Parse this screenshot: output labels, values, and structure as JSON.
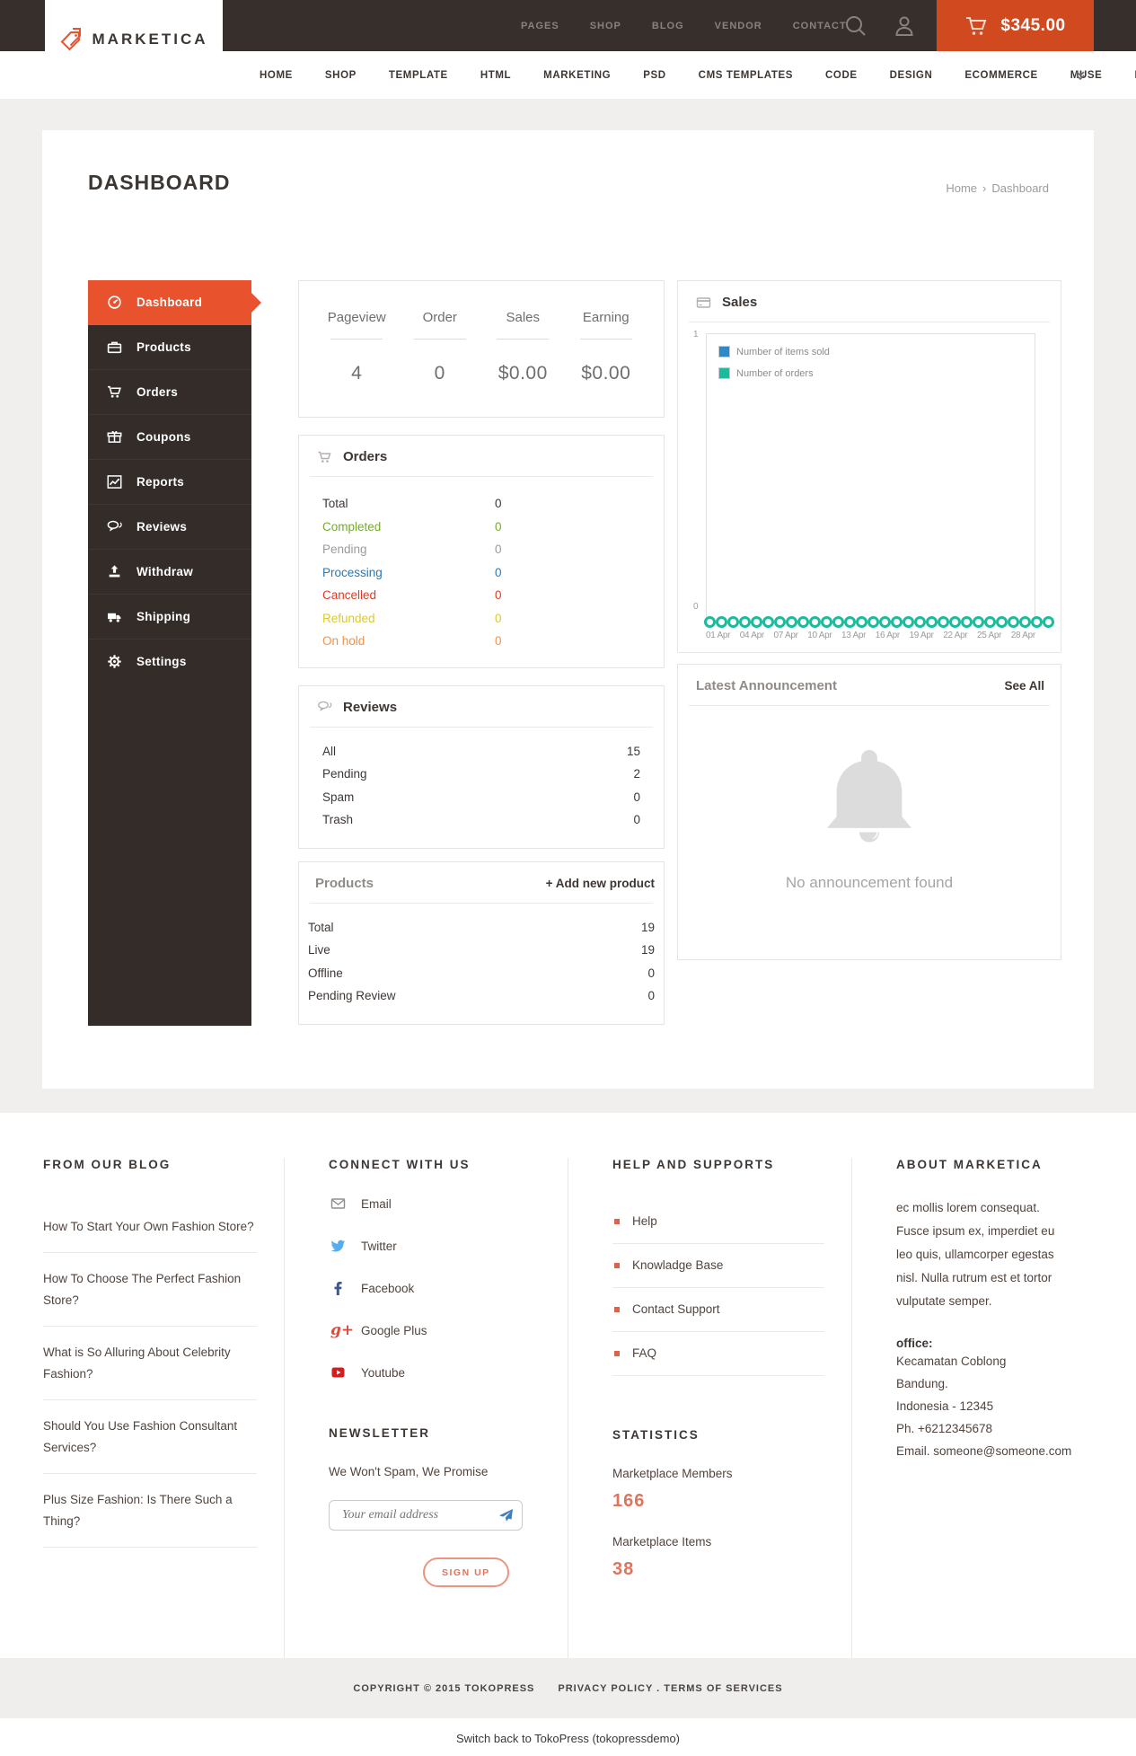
{
  "brand": {
    "name": "MARKETICA",
    "accent": "#e8522d",
    "cart_accent": "#d0491f",
    "header_bg": "#372f2b"
  },
  "topbar": {
    "nav": [
      "PAGES",
      "SHOP",
      "BLOG",
      "VENDOR",
      "CONTACT"
    ],
    "cart_total": "$345.00"
  },
  "mainnav": {
    "items": [
      "HOME",
      "SHOP",
      "TEMPLATE",
      "HTML",
      "MARKETING",
      "PSD",
      "CMS TEMPLATES",
      "CODE",
      "DESIGN",
      "ECOMMERCE",
      "MUSE",
      "PHOTO STOCKS"
    ]
  },
  "page": {
    "title": "DASHBOARD",
    "breadcrumb": {
      "home": "Home",
      "sep": "›",
      "current": "Dashboard"
    }
  },
  "sidebar": {
    "items": [
      {
        "label": "Dashboard",
        "icon": "dashboard-gauge"
      },
      {
        "label": "Products",
        "icon": "briefcase"
      },
      {
        "label": "Orders",
        "icon": "cart"
      },
      {
        "label": "Coupons",
        "icon": "gift"
      },
      {
        "label": "Reports",
        "icon": "line-chart"
      },
      {
        "label": "Reviews",
        "icon": "comments"
      },
      {
        "label": "Withdraw",
        "icon": "upload"
      },
      {
        "label": "Shipping",
        "icon": "truck"
      },
      {
        "label": "Settings",
        "icon": "gear"
      }
    ],
    "active": "Dashboard"
  },
  "stats": {
    "columns": [
      {
        "label": "Pageview",
        "value": "4"
      },
      {
        "label": "Order",
        "value": "0"
      },
      {
        "label": "Sales",
        "value": "$0.00"
      },
      {
        "label": "Earning",
        "value": "$0.00"
      }
    ]
  },
  "orders_panel": {
    "title": "Orders",
    "rows": [
      {
        "label": "Total",
        "value": "0",
        "cls": "c-dark"
      },
      {
        "label": "Completed",
        "value": "0",
        "cls": "c-green"
      },
      {
        "label": "Pending",
        "value": "0",
        "cls": "c-gray"
      },
      {
        "label": "Processing",
        "value": "0",
        "cls": "c-blue"
      },
      {
        "label": "Cancelled",
        "value": "0",
        "cls": "c-red"
      },
      {
        "label": "Refunded",
        "value": "0",
        "cls": "c-yellow"
      },
      {
        "label": "On hold",
        "value": "0",
        "cls": "c-orange"
      }
    ]
  },
  "chart_data": {
    "type": "scatter",
    "title": "Sales",
    "x": [
      "01 Apr",
      "02 Apr",
      "03 Apr",
      "04 Apr",
      "05 Apr",
      "06 Apr",
      "07 Apr",
      "08 Apr",
      "09 Apr",
      "10 Apr",
      "11 Apr",
      "12 Apr",
      "13 Apr",
      "14 Apr",
      "15 Apr",
      "16 Apr",
      "17 Apr",
      "18 Apr",
      "19 Apr",
      "20 Apr",
      "21 Apr",
      "22 Apr",
      "23 Apr",
      "24 Apr",
      "25 Apr",
      "26 Apr",
      "27 Apr",
      "28 Apr",
      "29 Apr",
      "30 Apr"
    ],
    "series": [
      {
        "name": "Number of items sold",
        "color": "#2d89c8",
        "values": [
          0,
          0,
          0,
          0,
          0,
          0,
          0,
          0,
          0,
          0,
          0,
          0,
          0,
          0,
          0,
          0,
          0,
          0,
          0,
          0,
          0,
          0,
          0,
          0,
          0,
          0,
          0,
          0,
          0,
          0
        ]
      },
      {
        "name": "Number of orders",
        "color": "#1abc9c",
        "values": [
          0,
          0,
          0,
          0,
          0,
          0,
          0,
          0,
          0,
          0,
          0,
          0,
          0,
          0,
          0,
          0,
          0,
          0,
          0,
          0,
          0,
          0,
          0,
          0,
          0,
          0,
          0,
          0,
          0,
          0
        ]
      }
    ],
    "ylim": [
      "0",
      "1"
    ],
    "xticks": [
      "01 Apr",
      "04 Apr",
      "07 Apr",
      "10 Apr",
      "13 Apr",
      "16 Apr",
      "19 Apr",
      "22 Apr",
      "25 Apr",
      "28 Apr"
    ],
    "legend_position": "top-left-inside",
    "grid": false
  },
  "reviews_panel": {
    "title": "Reviews",
    "rows": [
      {
        "label": "All",
        "value": "15"
      },
      {
        "label": "Pending",
        "value": "2"
      },
      {
        "label": "Spam",
        "value": "0"
      },
      {
        "label": "Trash",
        "value": "0"
      }
    ]
  },
  "products_panel": {
    "title": "Products",
    "action": "+ Add new product",
    "rows": [
      {
        "label": "Total",
        "value": "19"
      },
      {
        "label": "Live",
        "value": "19"
      },
      {
        "label": "Offline",
        "value": "0"
      },
      {
        "label": "Pending Review",
        "value": "0"
      }
    ]
  },
  "announcement_panel": {
    "title": "Latest Announcement",
    "action": "See All",
    "empty": "No announcement found"
  },
  "footer": {
    "blog": {
      "heading": "FROM OUR BLOG",
      "items": [
        "How To Start Your Own Fashion Store?",
        "How To Choose The Perfect Fashion Store?",
        "What is So Alluring About Celebrity Fashion?",
        "Should You Use Fashion Consultant Services?",
        "Plus Size Fashion: Is There Such a Thing?"
      ]
    },
    "connect": {
      "heading": "CONNECT WITH US",
      "links": [
        {
          "label": "Email",
          "icon": "envelope"
        },
        {
          "label": "Twitter",
          "icon": "twitter-bird"
        },
        {
          "label": "Facebook",
          "icon": "facebook-f"
        },
        {
          "label": "Google Plus",
          "icon": "google-plus"
        },
        {
          "label": "Youtube",
          "icon": "youtube-play"
        }
      ]
    },
    "newsletter": {
      "heading": "NEWSLETTER",
      "note": "We Won't Spam, We Promise",
      "placeholder": "Your email address",
      "button": "SIGN UP"
    },
    "help": {
      "heading": "HELP AND SUPPORTS",
      "items": [
        "Help",
        "Knowladge Base",
        "Contact Support",
        "FAQ"
      ]
    },
    "statistics": {
      "heading": "STATISTICS",
      "members_label": "Marketplace Members",
      "members_value": "166",
      "items_label": "Marketplace Items",
      "items_value": "38"
    },
    "about": {
      "heading": "ABOUT MARKETICA",
      "text": "ec mollis lorem consequat. Fusce ipsum ex, imperdiet eu leo quis, ullamcorper egestas nisl. Nulla rutrum est et tortor vulputate semper.",
      "office_label": "office:",
      "address_lines": [
        "Kecamatan Coblong",
        "Bandung.",
        "Indonesia - 12345",
        "Ph. +6212345678",
        "Email. someone@someone.com"
      ]
    }
  },
  "copyright": {
    "left": "COPYRIGHT © 2015 TOKOPRESS",
    "right": "PRIVACY POLICY . TERMS OF SERVICES"
  },
  "switchback": "Switch back to TokoPress (tokopressdemo)",
  "icons": {
    "gplus_glyph": "g+"
  }
}
